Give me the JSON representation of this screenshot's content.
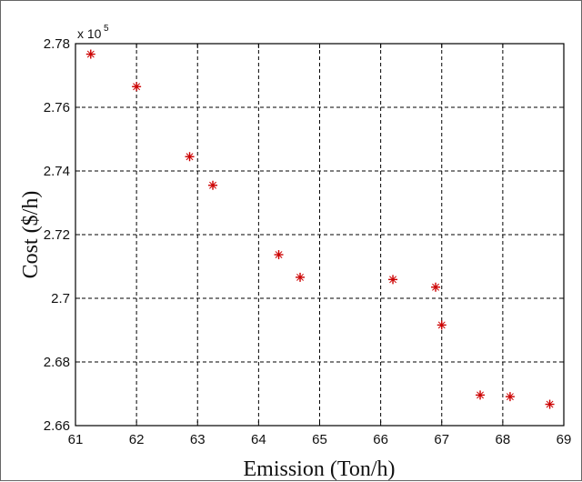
{
  "chart_data": {
    "type": "scatter",
    "title": "",
    "xlabel": "Emission (Ton/h)",
    "ylabel": "Cost ($/h)",
    "y_multiplier_label": "x 10",
    "y_multiplier_exponent": "5",
    "xlim": [
      61,
      69
    ],
    "ylim": [
      2.66,
      2.78
    ],
    "x_ticks": [
      "61",
      "62",
      "63",
      "64",
      "65",
      "66",
      "67",
      "68",
      "69"
    ],
    "y_ticks": [
      "2.66",
      "2.68",
      "2.7",
      "2.72",
      "2.74",
      "2.76",
      "2.78"
    ],
    "grid": true,
    "grid_style": "dashed",
    "marker": "asterisk",
    "marker_color": "#cc0000",
    "series": [
      {
        "x": [
          61.25,
          62.0,
          62.87,
          63.25,
          64.33,
          64.68,
          66.2,
          66.9,
          67.0,
          67.63,
          68.12,
          68.77
        ],
        "y": [
          2.7767,
          2.7665,
          2.7445,
          2.7355,
          2.7137,
          2.7066,
          2.7059,
          2.7035,
          2.6916,
          2.6696,
          2.6691,
          2.6667
        ]
      }
    ]
  }
}
